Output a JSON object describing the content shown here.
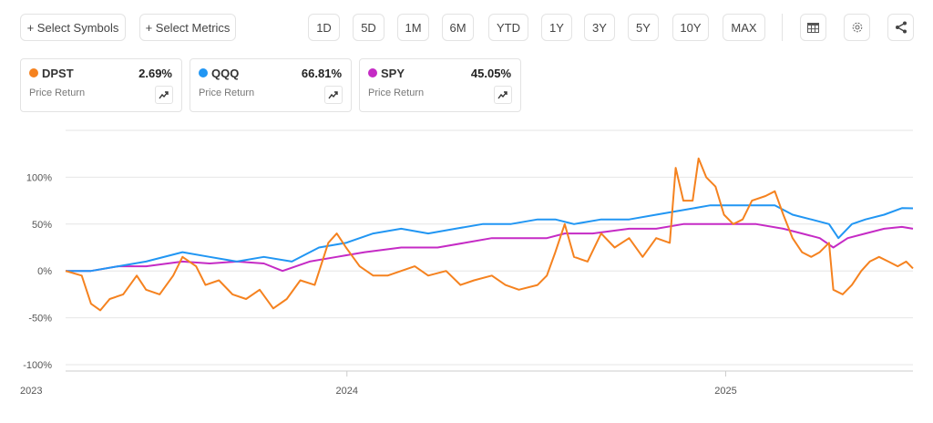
{
  "toolbar": {
    "select_symbols": "+ Select Symbols",
    "select_metrics": "+ Select Metrics",
    "ranges": [
      "1D",
      "5D",
      "1M",
      "6M",
      "YTD",
      "1Y",
      "3Y",
      "5Y",
      "10Y",
      "MAX"
    ],
    "icons": [
      "table-icon",
      "gear-icon",
      "share-icon"
    ]
  },
  "cards": [
    {
      "symbol": "DPST",
      "value": "2.69%",
      "label": "Price Return",
      "color": "#f5821f"
    },
    {
      "symbol": "QQQ",
      "value": "66.81%",
      "label": "Price Return",
      "color": "#2196f3"
    },
    {
      "symbol": "SPY",
      "value": "45.05%",
      "label": "Price Return",
      "color": "#c52bc5"
    }
  ],
  "chart_data": {
    "type": "line",
    "ylim": [
      -100,
      150
    ],
    "yticks": [
      {
        "v": 100,
        "label": "100%"
      },
      {
        "v": 50,
        "label": "50%"
      },
      {
        "v": 0,
        "label": "0%"
      },
      {
        "v": -50,
        "label": "-50%"
      },
      {
        "v": -100,
        "label": "-100%"
      }
    ],
    "xlim": [
      0,
      100
    ],
    "xticks": [
      {
        "v": 0,
        "label": "2023"
      },
      {
        "v": 33.2,
        "label": "2024"
      },
      {
        "v": 77.9,
        "label": "2025"
      }
    ],
    "series": [
      {
        "name": "DPST",
        "color": "#f5821f",
        "x": [
          0,
          1.9,
          3,
          4.1,
          5.2,
          6.8,
          8.4,
          9.5,
          11.1,
          12.7,
          13.8,
          15.4,
          16.5,
          18.1,
          19.7,
          21.3,
          22.9,
          24.5,
          26.1,
          27.7,
          29.4,
          31,
          32,
          33.1,
          34.7,
          36.3,
          38,
          39.6,
          41.2,
          42.8,
          44.9,
          46.6,
          48.2,
          50.3,
          51.9,
          53.5,
          55.7,
          56.8,
          57.8,
          58.9,
          60,
          61.6,
          63.2,
          64.8,
          66.5,
          68.1,
          69.7,
          71.3,
          72,
          72.9,
          74,
          74.7,
          75.6,
          76.7,
          77.7,
          78.8,
          79.9,
          81,
          82.6,
          83.7,
          84.7,
          85.8,
          86.9,
          88,
          89,
          90.1,
          90.6,
          91.7,
          92.8,
          93.9,
          94.9,
          96,
          97.1,
          98.2,
          99.2,
          100
        ],
        "y": [
          0,
          -5,
          -35,
          -42,
          -30,
          -25,
          -5,
          -20,
          -25,
          -5,
          15,
          5,
          -15,
          -10,
          -25,
          -30,
          -20,
          -40,
          -30,
          -10,
          -15,
          30,
          40,
          25,
          5,
          -5,
          -5,
          0,
          5,
          -5,
          0,
          -15,
          -10,
          -5,
          -15,
          -20,
          -15,
          -5,
          20,
          50,
          15,
          10,
          40,
          25,
          35,
          15,
          35,
          30,
          110,
          75,
          75,
          120,
          100,
          90,
          60,
          50,
          55,
          75,
          80,
          85,
          60,
          35,
          20,
          15,
          20,
          30,
          -20,
          -25,
          -15,
          0,
          10,
          15,
          10,
          5,
          10,
          2.69
        ]
      },
      {
        "name": "QQQ",
        "color": "#2196f3",
        "x": [
          0,
          3,
          6.2,
          9.5,
          13.8,
          17,
          20.2,
          23.4,
          26.7,
          29.9,
          33.1,
          36.3,
          39.6,
          42.8,
          46,
          49.2,
          52.5,
          55.7,
          57.8,
          60,
          63.2,
          66.5,
          69.7,
          72.9,
          76.1,
          78.3,
          80.4,
          83.7,
          85.8,
          88,
          90.1,
          91.2,
          92.8,
          94.4,
          96.6,
          98.7,
          100
        ],
        "y": [
          0,
          0,
          5,
          10,
          20,
          15,
          10,
          15,
          10,
          25,
          30,
          40,
          45,
          40,
          45,
          50,
          50,
          55,
          55,
          50,
          55,
          55,
          60,
          65,
          70,
          70,
          70,
          70,
          60,
          55,
          50,
          35,
          50,
          55,
          60,
          67,
          66.81
        ]
      },
      {
        "name": "SPY",
        "color": "#c52bc5",
        "x": [
          0,
          3,
          6.2,
          9.5,
          13.8,
          17,
          20.2,
          23.4,
          25.6,
          28.8,
          32,
          35.3,
          39.6,
          43.9,
          47.1,
          50.3,
          53.5,
          56.8,
          58.9,
          62.2,
          66.5,
          69.7,
          72.9,
          76.1,
          78.3,
          81.5,
          84.7,
          86.9,
          89,
          90.6,
          92.3,
          94.4,
          96.6,
          98.7,
          100
        ],
        "y": [
          0,
          0,
          5,
          5,
          10,
          8,
          10,
          8,
          0,
          10,
          15,
          20,
          25,
          25,
          30,
          35,
          35,
          35,
          40,
          40,
          45,
          45,
          50,
          50,
          50,
          50,
          45,
          40,
          35,
          25,
          35,
          40,
          45,
          47,
          45.05
        ]
      }
    ]
  }
}
